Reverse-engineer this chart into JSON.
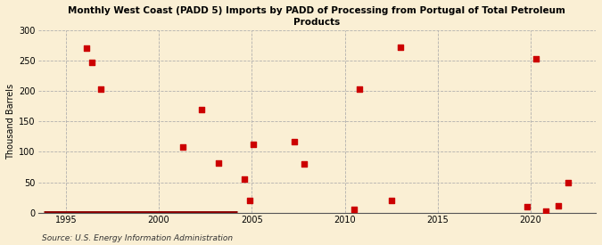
{
  "title": "Monthly West Coast (PADD 5) Imports by PADD of Processing from Portugal of Total Petroleum\nProducts",
  "ylabel": "Thousand Barrels",
  "source": "Source: U.S. Energy Information Administration",
  "background_color": "#faefd4",
  "plot_bg_color": "#faefd4",
  "marker_color": "#cc0000",
  "line_color": "#8b0000",
  "xlim": [
    1993.5,
    2023.5
  ],
  "ylim": [
    0,
    300
  ],
  "yticks": [
    0,
    50,
    100,
    150,
    200,
    250,
    300
  ],
  "xticks": [
    1995,
    2000,
    2005,
    2010,
    2015,
    2020
  ],
  "scatter_x": [
    1996.1,
    1996.4,
    1996.9,
    2001.3,
    2002.3,
    2003.2,
    2004.6,
    2004.9,
    2005.1,
    2007.3,
    2007.8,
    2010.5,
    2010.8,
    2012.5,
    2013.0,
    2019.8,
    2020.3,
    2020.8,
    2021.5,
    2022.0
  ],
  "scatter_y": [
    270,
    247,
    203,
    108,
    170,
    82,
    55,
    20,
    112,
    116,
    80,
    5,
    203,
    20,
    272,
    10,
    253,
    2,
    12,
    50
  ],
  "line_x_start": 1993.8,
  "line_x_end": 2004.2,
  "line_y": 0,
  "title_fontsize": 7.5,
  "tick_fontsize": 7,
  "ylabel_fontsize": 7,
  "source_fontsize": 6.5
}
